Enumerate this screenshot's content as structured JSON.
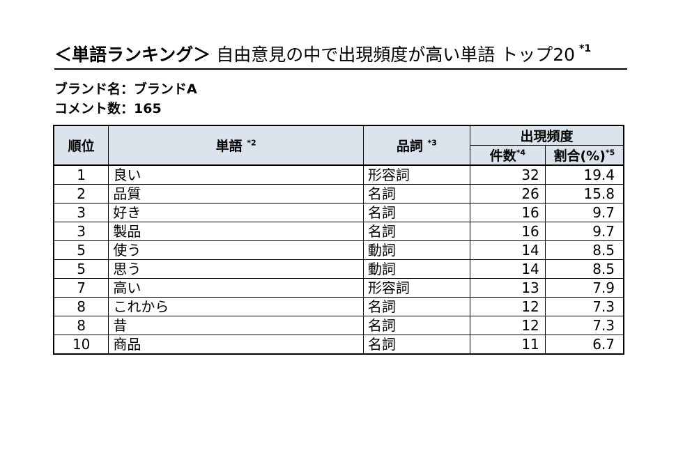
{
  "title": {
    "main": "＜単語ランキング＞",
    "sub": "自由意見の中で出現頻度が高い単語",
    "suffix": "トップ20",
    "note": "*1"
  },
  "brand_line": "ブランド名：ブランドA",
  "comment_line": "コメント数：165",
  "table": {
    "headers": {
      "rank": "順位",
      "word": "単語",
      "word_note": "*2",
      "pos": "品詞",
      "pos_note": "*3",
      "freq": "出現頻度",
      "count": "件数",
      "count_note": "*4",
      "ratio": "割合(%)",
      "ratio_note": "*5"
    },
    "rows": [
      {
        "rank": "1",
        "word": "良い",
        "pos": "形容詞",
        "count": "32",
        "ratio": "19.4"
      },
      {
        "rank": "2",
        "word": "品質",
        "pos": "名詞",
        "count": "26",
        "ratio": "15.8"
      },
      {
        "rank": "3",
        "word": "好き",
        "pos": "名詞",
        "count": "16",
        "ratio": "9.7"
      },
      {
        "rank": "3",
        "word": "製品",
        "pos": "名詞",
        "count": "16",
        "ratio": "9.7"
      },
      {
        "rank": "5",
        "word": "使う",
        "pos": "動詞",
        "count": "14",
        "ratio": "8.5"
      },
      {
        "rank": "5",
        "word": "思う",
        "pos": "動詞",
        "count": "14",
        "ratio": "8.5"
      },
      {
        "rank": "7",
        "word": "高い",
        "pos": "形容詞",
        "count": "13",
        "ratio": "7.9"
      },
      {
        "rank": "8",
        "word": "これから",
        "pos": "名詞",
        "count": "12",
        "ratio": "7.3"
      },
      {
        "rank": "8",
        "word": "昔",
        "pos": "名詞",
        "count": "12",
        "ratio": "7.3"
      },
      {
        "rank": "10",
        "word": "商品",
        "pos": "名詞",
        "count": "11",
        "ratio": "6.7"
      }
    ]
  }
}
